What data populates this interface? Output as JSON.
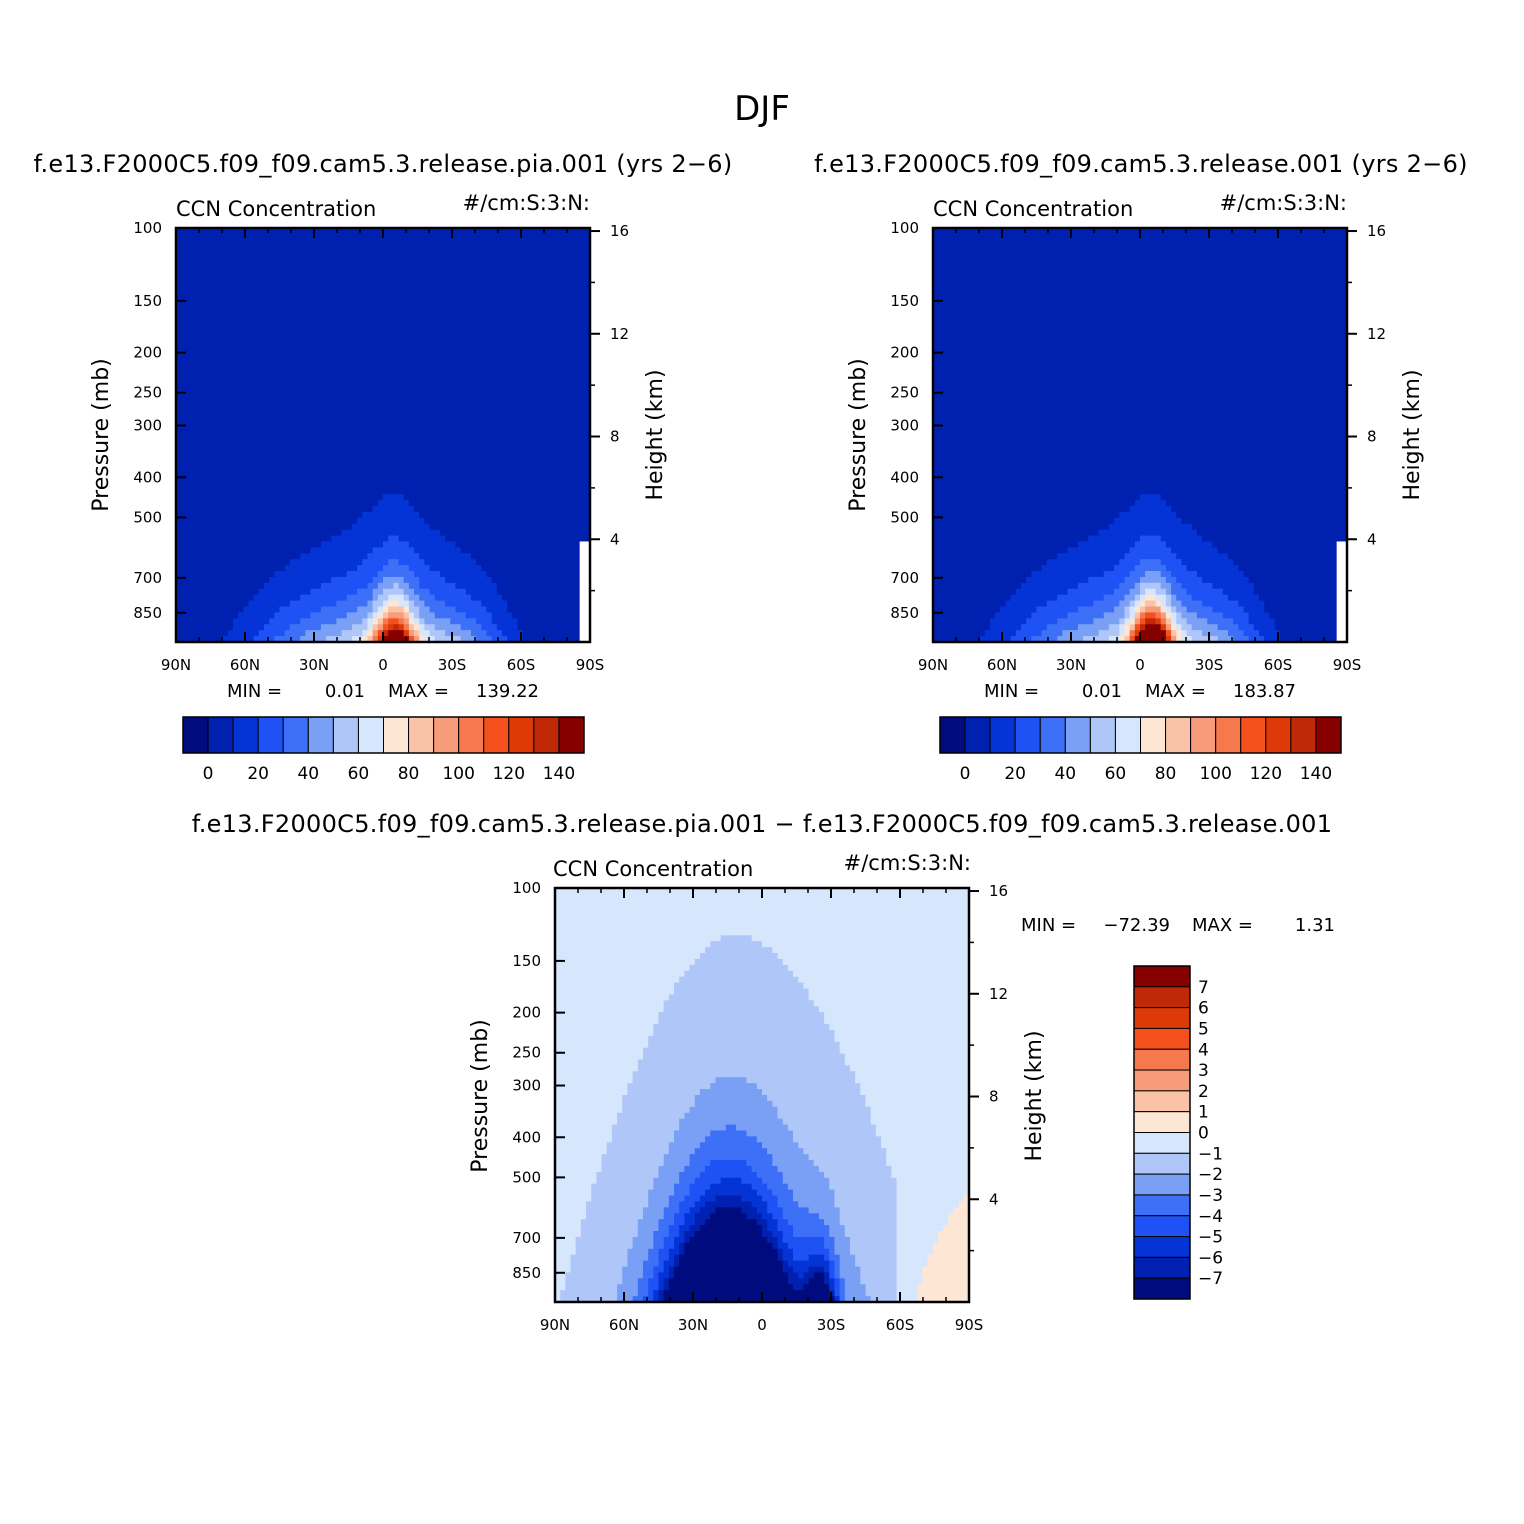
{
  "main_title": "DJF",
  "chart_data": [
    {
      "id": "panel1",
      "type": "contour",
      "title": "f.e13.F2000C5.f09_f09.cam5.3.release.pia.001 (yrs 2−6)",
      "left_label": "CCN Concentration",
      "right_label": "#/cm:S:3:N:",
      "xlabel": "",
      "ylabel": "Pressure (mb)",
      "y2label": "Height (km)",
      "x_ticks": [
        "90N",
        "60N",
        "30N",
        "0",
        "30S",
        "60S",
        "90S"
      ],
      "y_ticks": [
        "100",
        "150",
        "200",
        "250",
        "300",
        "400",
        "500",
        "700",
        "850"
      ],
      "y_values": [
        100,
        150,
        200,
        250,
        300,
        400,
        500,
        700,
        850
      ],
      "ylim": [
        100,
        1000
      ],
      "y2_ticks": [
        "16",
        "12",
        "8",
        "4"
      ],
      "y2_values": [
        16,
        12,
        8,
        4
      ],
      "min_label": "MIN =",
      "min_value": "0.01",
      "max_label": "MAX =",
      "max_value": "139.22",
      "levels": [
        0,
        10,
        20,
        30,
        40,
        50,
        60,
        70,
        80,
        90,
        100,
        110,
        120,
        130,
        140
      ],
      "colorbar_labels": [
        "0",
        "20",
        "40",
        "60",
        "80",
        "100",
        "120",
        "140"
      ],
      "peak": {
        "lat": -5,
        "value": 139.22
      }
    },
    {
      "id": "panel2",
      "type": "contour",
      "title": "f.e13.F2000C5.f09_f09.cam5.3.release.001 (yrs 2−6)",
      "left_label": "CCN Concentration",
      "right_label": "#/cm:S:3:N:",
      "xlabel": "",
      "ylabel": "Pressure (mb)",
      "y2label": "Height (km)",
      "x_ticks": [
        "90N",
        "60N",
        "30N",
        "0",
        "30S",
        "60S",
        "90S"
      ],
      "y_ticks": [
        "100",
        "150",
        "200",
        "250",
        "300",
        "400",
        "500",
        "700",
        "850"
      ],
      "y_values": [
        100,
        150,
        200,
        250,
        300,
        400,
        500,
        700,
        850
      ],
      "ylim": [
        100,
        1000
      ],
      "y2_ticks": [
        "16",
        "12",
        "8",
        "4"
      ],
      "y2_values": [
        16,
        12,
        8,
        4
      ],
      "min_label": "MIN =",
      "min_value": "0.01",
      "max_label": "MAX =",
      "max_value": "183.87",
      "levels": [
        0,
        10,
        20,
        30,
        40,
        50,
        60,
        70,
        80,
        90,
        100,
        110,
        120,
        130,
        140
      ],
      "colorbar_labels": [
        "0",
        "20",
        "40",
        "60",
        "80",
        "100",
        "120",
        "140"
      ],
      "peak": {
        "lat": -5,
        "value": 183.87
      }
    },
    {
      "id": "panel3",
      "type": "contour",
      "title": "f.e13.F2000C5.f09_f09.cam5.3.release.pia.001 − f.e13.F2000C5.f09_f09.cam5.3.release.001",
      "left_label": "CCN Concentration",
      "right_label": "#/cm:S:3:N:",
      "xlabel": "",
      "ylabel": "Pressure (mb)",
      "y2label": "Height (km)",
      "x_ticks": [
        "90N",
        "60N",
        "30N",
        "0",
        "30S",
        "60S",
        "90S"
      ],
      "y_ticks": [
        "100",
        "150",
        "200",
        "250",
        "300",
        "400",
        "500",
        "700",
        "850"
      ],
      "y_values": [
        100,
        150,
        200,
        250,
        300,
        400,
        500,
        700,
        850
      ],
      "ylim": [
        100,
        1000
      ],
      "y2_ticks": [
        "16",
        "12",
        "8",
        "4"
      ],
      "y2_values": [
        16,
        12,
        8,
        4
      ],
      "min_label": "MIN =",
      "min_value": "−72.39",
      "max_label": "MAX =",
      "max_value": "1.31",
      "levels": [
        -7,
        -6,
        -5,
        -4,
        -3,
        -2,
        -1,
        0,
        1,
        2,
        3,
        4,
        5,
        6,
        7
      ],
      "colorbar_labels": [
        "7",
        "6",
        "5",
        "4",
        "3",
        "2",
        "1",
        "0",
        "−1",
        "−2",
        "−3",
        "−4",
        "−5",
        "−6",
        "−7"
      ]
    }
  ],
  "colors": {
    "seq": [
      "#000c7e",
      "#0020b0",
      "#0433d6",
      "#1f52f5",
      "#3d70f7",
      "#7aa0f5",
      "#afc6f9",
      "#d6e6fd",
      "#fde6d4",
      "#fac3a8",
      "#f79c7b",
      "#f6784d",
      "#f4511e",
      "#de3a08",
      "#c02908",
      "#860000"
    ],
    "diff": [
      "#000c7e",
      "#0020b0",
      "#0433d6",
      "#1f52f5",
      "#3d70f7",
      "#7aa0f5",
      "#afc6f9",
      "#d6e6fd",
      "#fde6d4",
      "#fac3a8",
      "#f79c7b",
      "#f6784d",
      "#f4511e",
      "#de3a08",
      "#c02908",
      "#860000"
    ]
  }
}
